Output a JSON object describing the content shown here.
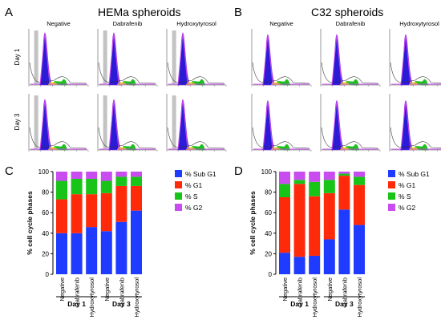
{
  "colors": {
    "sub_g1": "#1f3bff",
    "g1": "#ff2a0a",
    "s": "#19c419",
    "g2": "#c84cf0",
    "hist_fill": "#2b1ad6",
    "hist_line": "#9b2ee8",
    "gate": "#bdbdbd"
  },
  "panels": {
    "A": {
      "letter": "A",
      "title": "HEMa spheroids",
      "columns": [
        "Negative",
        "Dabrafenib",
        "Hydroxytyrosol"
      ],
      "rows": [
        "Day 1",
        "Day 3"
      ]
    },
    "B": {
      "letter": "B",
      "title": "C32 spheroids",
      "columns": [
        "Negative",
        "Dabrafenib",
        "Hydroxytyrosol"
      ],
      "rows": [
        "",
        ""
      ]
    }
  },
  "chart_data": [
    {
      "panel": "C",
      "type": "bar",
      "stacked": true,
      "categories": [
        "Negative",
        "Dabrafenib",
        "Hydroxytyrosol",
        "Negative",
        "Dabrafenib",
        "Hydroxytyrosol"
      ],
      "groups": [
        {
          "label": "Day 1",
          "span": [
            0,
            2
          ]
        },
        {
          "label": "Day 3",
          "span": [
            3,
            5
          ]
        }
      ],
      "ylabel": "% cell cycle phases",
      "xlabel": "",
      "ylim": [
        0,
        100
      ],
      "yticks": [
        0,
        20,
        40,
        60,
        80,
        100
      ],
      "legend": "right",
      "series": [
        {
          "name": "% Sub G1",
          "values": [
            40,
            40,
            46,
            42,
            51,
            62
          ]
        },
        {
          "name": "% G1",
          "values": [
            33,
            38,
            32,
            37,
            35,
            24
          ]
        },
        {
          "name": "% S",
          "values": [
            18,
            15,
            15,
            12,
            9,
            9
          ]
        },
        {
          "name": "% G2",
          "values": [
            9,
            7,
            7,
            9,
            5,
            5
          ]
        }
      ]
    },
    {
      "panel": "D",
      "type": "bar",
      "stacked": true,
      "categories": [
        "Negative",
        "Dabrafenib",
        "Hydroxytyrosol",
        "Negative",
        "Dabrafenib",
        "Hydroxytyrosol"
      ],
      "groups": [
        {
          "label": "Day 1",
          "span": [
            0,
            2
          ]
        },
        {
          "label": "Day 3",
          "span": [
            3,
            5
          ]
        }
      ],
      "ylabel": "% cell cycle phases",
      "xlabel": "",
      "ylim": [
        0,
        100
      ],
      "yticks": [
        0,
        20,
        40,
        60,
        80,
        100
      ],
      "legend": "right",
      "series": [
        {
          "name": "% Sub G1",
          "values": [
            21,
            17,
            18,
            34,
            63,
            48
          ]
        },
        {
          "name": "% G1",
          "values": [
            54,
            71,
            58,
            45,
            33,
            39
          ]
        },
        {
          "name": "% S",
          "values": [
            13,
            4,
            14,
            13,
            2,
            8
          ]
        },
        {
          "name": "% G2",
          "values": [
            12,
            8,
            10,
            8,
            2,
            5
          ]
        }
      ]
    }
  ]
}
